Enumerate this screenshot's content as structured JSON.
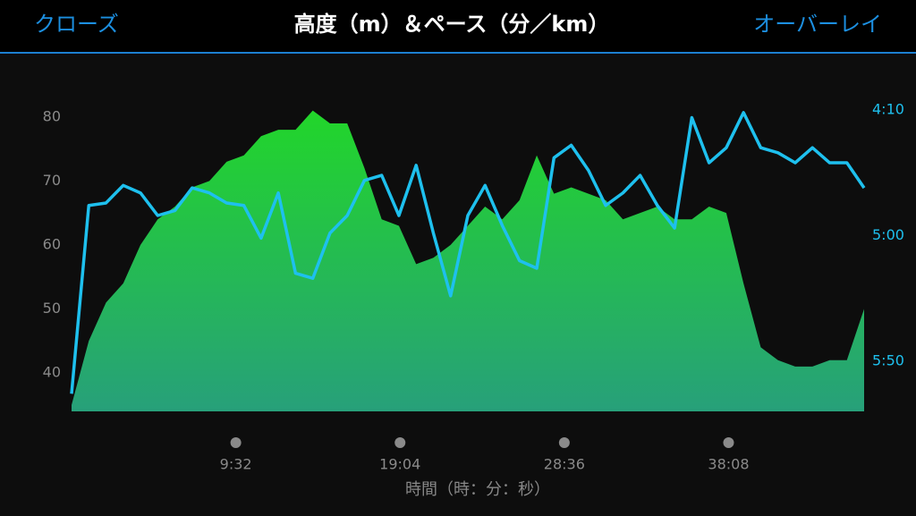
{
  "header": {
    "close": "クローズ",
    "title": "高度（m）＆ペース（分／km）",
    "overlay": "オーバーレイ"
  },
  "chart_data": {
    "type": "combo",
    "x_label": "時間（時：分：秒）",
    "x": [
      0,
      60,
      120,
      180,
      240,
      300,
      360,
      420,
      480,
      540,
      600,
      660,
      720,
      780,
      840,
      900,
      960,
      1020,
      1080,
      1140,
      1200,
      1260,
      1320,
      1380,
      1440,
      1500,
      1560,
      1620,
      1680,
      1740,
      1800,
      1860,
      1920,
      1980,
      2040,
      2100,
      2160,
      2220,
      2280,
      2340,
      2400,
      2460,
      2520,
      2580,
      2640,
      2700,
      2760
    ],
    "xlim": [
      0,
      2760
    ],
    "xticks": [
      {
        "value": 572,
        "label": "9:32"
      },
      {
        "value": 1144,
        "label": "19:04"
      },
      {
        "value": 1716,
        "label": "28:36"
      },
      {
        "value": 2288,
        "label": "38:08"
      }
    ],
    "ylim": [
      34,
      85
    ],
    "yticks": [
      40,
      50,
      60,
      70,
      80
    ],
    "y2lim": [
      370,
      240
    ],
    "y2ticks": [
      {
        "value": 250,
        "label": "4:10"
      },
      {
        "value": 300,
        "label": "5:00"
      },
      {
        "value": 350,
        "label": "5:50"
      }
    ],
    "series": [
      {
        "type": "area",
        "axis": "y",
        "color": "#22d62a",
        "values": [
          35,
          45,
          51,
          54,
          60,
          64,
          66,
          69,
          70,
          73,
          74,
          77,
          78,
          78,
          81,
          79,
          79,
          72,
          64,
          63,
          57,
          58,
          60,
          63,
          66,
          64,
          67,
          74,
          68,
          69,
          68,
          67,
          64,
          65,
          66,
          64,
          64,
          66,
          65,
          54,
          44,
          42,
          41,
          41,
          42,
          42,
          50
        ]
      },
      {
        "type": "line",
        "axis": "y2",
        "color": "#1ec0ee",
        "values": [
          363,
          288,
          287,
          280,
          283,
          292,
          290,
          281,
          283,
          287,
          288,
          301,
          283,
          315,
          317,
          299,
          292,
          278,
          276,
          292,
          272,
          299,
          324,
          292,
          280,
          296,
          310,
          313,
          269,
          264,
          274,
          288,
          283,
          276,
          288,
          297,
          253,
          271,
          265,
          251,
          265,
          267,
          271,
          265,
          271,
          271,
          281
        ]
      }
    ]
  }
}
